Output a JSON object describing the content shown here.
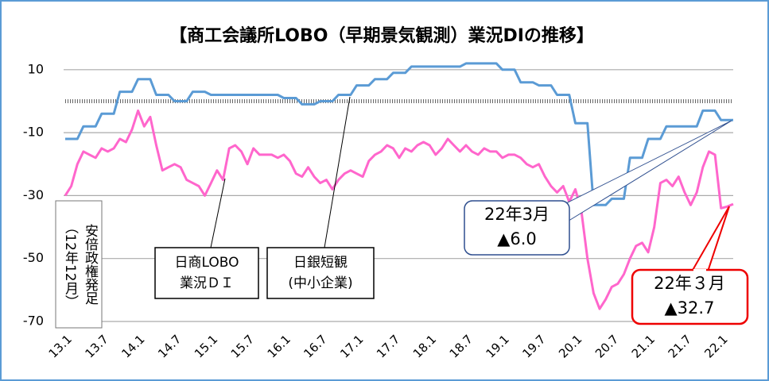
{
  "chart_data": {
    "type": "line",
    "title": "【商工会議所LOBO（早期景気観測）業況DIの推移】",
    "categories": [
      "13.1",
      null,
      null,
      null,
      null,
      null,
      "13.7",
      null,
      null,
      null,
      null,
      null,
      "14.1",
      null,
      null,
      null,
      null,
      null,
      "14.7",
      null,
      null,
      null,
      null,
      null,
      "15.1",
      null,
      null,
      null,
      null,
      null,
      "15.7",
      null,
      null,
      null,
      null,
      null,
      "16.1",
      null,
      null,
      null,
      null,
      null,
      "16.7",
      null,
      null,
      null,
      null,
      null,
      "17.1",
      null,
      null,
      null,
      null,
      null,
      "17.7",
      null,
      null,
      null,
      null,
      null,
      "18.1",
      null,
      null,
      null,
      null,
      null,
      "18.7",
      null,
      null,
      null,
      null,
      null,
      "19.1",
      null,
      null,
      null,
      null,
      null,
      "19.7",
      null,
      null,
      null,
      null,
      null,
      "20.1",
      null,
      null,
      null,
      null,
      null,
      "20.7",
      null,
      null,
      null,
      null,
      null,
      "21.1",
      null,
      null,
      null,
      null,
      null,
      "21.7",
      null,
      null,
      null,
      null,
      null,
      "22.1",
      null,
      null
    ],
    "series": [
      {
        "name": "日銀短観(中小企業)",
        "color": "#5b9bd5",
        "values": [
          -12,
          -12,
          -12,
          -8,
          -8,
          -8,
          -4,
          -4,
          -4,
          3,
          3,
          3,
          7,
          7,
          7,
          2,
          2,
          2,
          0,
          0,
          0,
          3,
          3,
          3,
          2,
          2,
          2,
          2,
          2,
          2,
          2,
          2,
          2,
          2,
          2,
          2,
          1,
          1,
          1,
          -1,
          -1,
          -1,
          0,
          0,
          0,
          2,
          2,
          2,
          5,
          5,
          5,
          7,
          7,
          7,
          9,
          9,
          9,
          11,
          11,
          11,
          11,
          11,
          11,
          11,
          11,
          11,
          12,
          12,
          12,
          12,
          12,
          12,
          10,
          10,
          10,
          6,
          6,
          6,
          5,
          5,
          5,
          2,
          2,
          2,
          -7,
          -7,
          -7,
          -33,
          -33,
          -33,
          -31,
          -31,
          -31,
          -18,
          -18,
          -18,
          -12,
          -12,
          -12,
          -8,
          -8,
          -8,
          -8,
          -8,
          -8,
          -3,
          -3,
          -3,
          -6,
          -6,
          -6
        ]
      },
      {
        "name": "日商LOBO業況DI",
        "color": "#ff66cc",
        "values": [
          -30,
          -27,
          -20,
          -16,
          -17,
          -18,
          -15,
          -16,
          -15,
          -12,
          -13,
          -9,
          -3,
          -8,
          -5,
          -14,
          -22,
          -21,
          -20,
          -21,
          -25,
          -26,
          -27,
          -30,
          -26,
          -22,
          -25,
          -15,
          -14,
          -16,
          -20,
          -15,
          -17,
          -17,
          -17,
          -18,
          -17,
          -19,
          -23,
          -24,
          -21,
          -24,
          -26,
          -25,
          -28,
          -25,
          -23,
          -22,
          -23,
          -24,
          -19,
          -17,
          -16,
          -14,
          -15,
          -18,
          -15,
          -16,
          -14,
          -13,
          -14,
          -17,
          -15,
          -12,
          -14,
          -16,
          -14,
          -16,
          -17,
          -15,
          -16,
          -16,
          -18,
          -17,
          -17,
          -18,
          -20,
          -21,
          -20,
          -24,
          -27,
          -29,
          -27,
          -32,
          -28,
          -35,
          -50,
          -61,
          -66,
          -63,
          -59,
          -58,
          -55,
          -50,
          -46,
          -45,
          -48,
          -40,
          -26,
          -25,
          -27,
          -24,
          -29,
          -33,
          -29,
          -21,
          -16,
          -17,
          -34,
          -33.5,
          -32.7
        ]
      }
    ],
    "ylim": [
      -70,
      15
    ],
    "yticks": [
      10,
      -10,
      -30,
      -50,
      -70
    ],
    "grid": true,
    "hline": 0,
    "annotations": {
      "lobo_label": [
        "日商LOBO",
        "業況ＤＩ"
      ],
      "tankan_label": [
        "日銀短観",
        "(中小企業)"
      ],
      "abe": [
        "安倍政権発足",
        "（12年12月）"
      ],
      "tankan_latest": [
        "22年3月",
        "▲6.0"
      ],
      "lobo_latest": [
        "22年３月",
        "▲32.7"
      ]
    }
  }
}
